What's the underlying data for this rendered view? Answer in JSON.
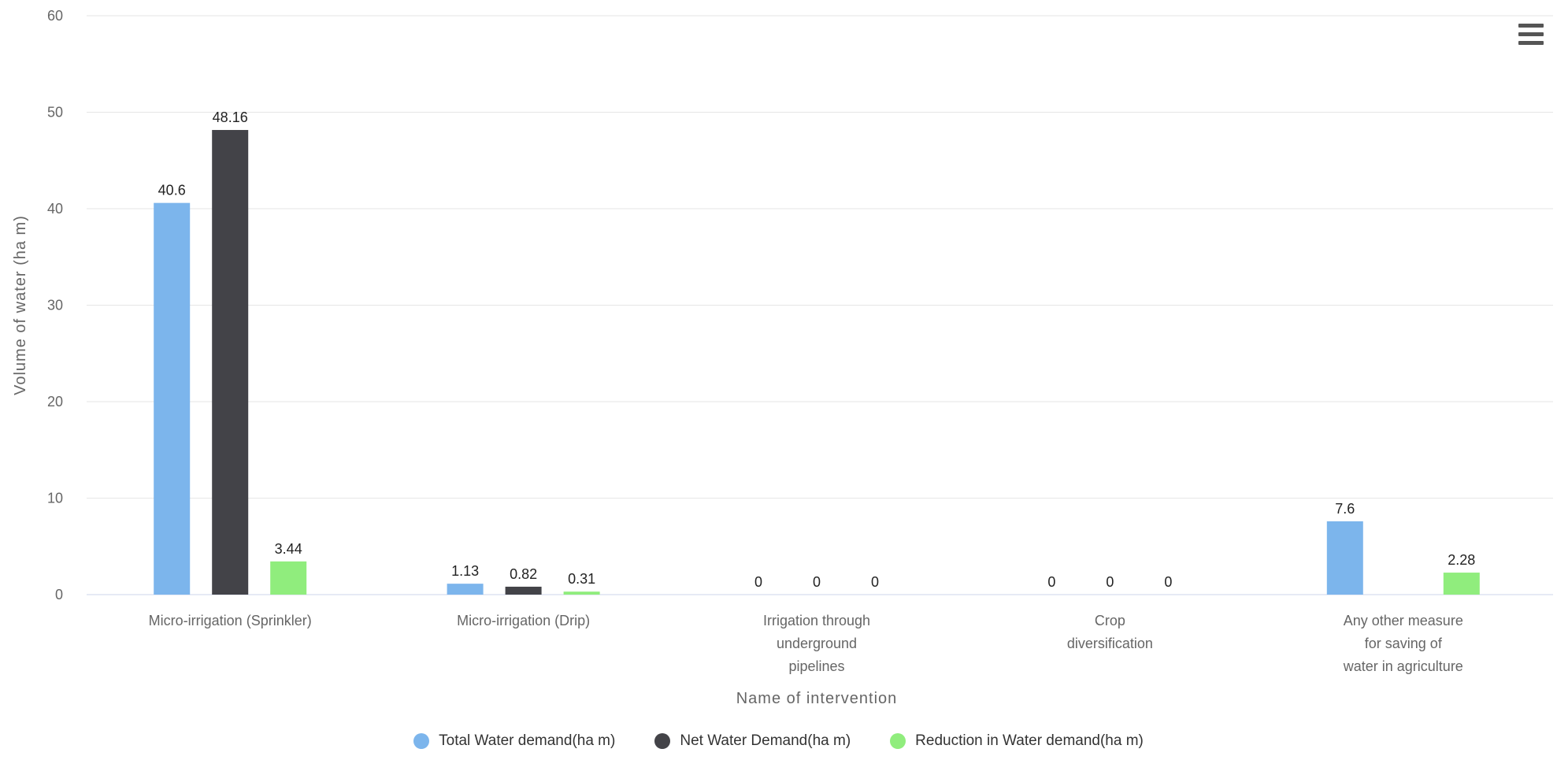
{
  "chart_data": {
    "type": "bar",
    "xlabel": "Name of intervention",
    "ylabel": "Volume of water (ha m)",
    "ylim": [
      0,
      60
    ],
    "yticks": [
      0,
      10,
      20,
      30,
      40,
      50,
      60
    ],
    "grid": true,
    "legend_position": "bottom",
    "categories": [
      [
        "Micro-irrigation (Sprinkler)"
      ],
      [
        "Micro-irrigation (Drip)"
      ],
      [
        "Irrigation through",
        "underground",
        "pipelines"
      ],
      [
        "Crop",
        "diversification"
      ],
      [
        "Any other measure",
        "for saving of",
        "water in agriculture"
      ]
    ],
    "series": [
      {
        "name": "Total Water demand(ha m)",
        "color": "#7cb5ec",
        "values": [
          40.6,
          1.13,
          0,
          0,
          7.6
        ],
        "labels": [
          "40.6",
          "1.13",
          "0",
          "0",
          "7.6"
        ]
      },
      {
        "name": "Net Water Demand(ha m)",
        "color": "#434348",
        "values": [
          48.16,
          0.82,
          0,
          0,
          null
        ],
        "labels": [
          "48.16",
          "0.82",
          "0",
          "0",
          null
        ]
      },
      {
        "name": "Reduction in Water demand(ha m)",
        "color": "#90ed7d",
        "values": [
          3.44,
          0.31,
          0,
          0,
          2.28
        ],
        "labels": [
          "3.44",
          "0.31",
          "0",
          "0",
          "2.28"
        ]
      }
    ]
  },
  "menu": {
    "icon": "hamburger-menu-icon"
  }
}
